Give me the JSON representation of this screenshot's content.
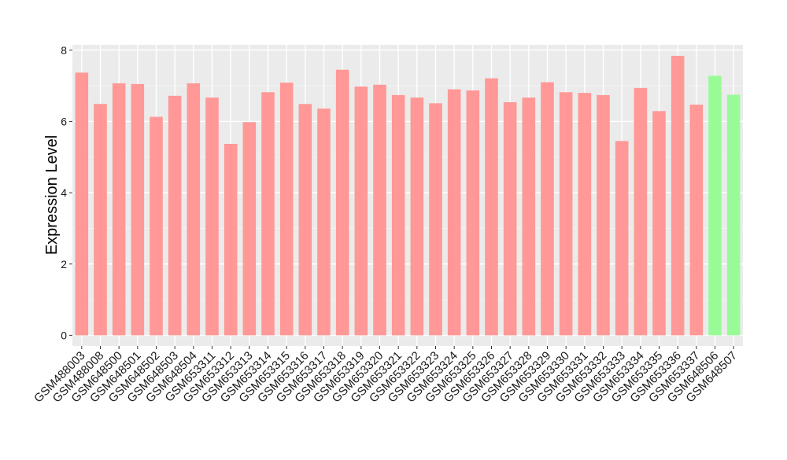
{
  "chart_data": {
    "type": "bar",
    "title": "",
    "xlabel": "",
    "ylabel": "Expression Level",
    "ylim": [
      -0.3,
      8.15
    ],
    "yticks": [
      0,
      2,
      4,
      6,
      8
    ],
    "grid": true,
    "legend": "none",
    "colors": {
      "panel_bg": "#EBEBEB",
      "grid_major": "#FFFFFF",
      "grid_minor": "#F4F4F4",
      "group_a": "#FF9896",
      "group_b": "#98FB98",
      "axis_text": "#1A1A1A",
      "tick": "#333333"
    },
    "categories": [
      "GSM488003",
      "GSM488008",
      "GSM648500",
      "GSM648501",
      "GSM648502",
      "GSM648503",
      "GSM648504",
      "GSM653311",
      "GSM653312",
      "GSM653313",
      "GSM653314",
      "GSM653315",
      "GSM653316",
      "GSM653317",
      "GSM653318",
      "GSM653319",
      "GSM653320",
      "GSM653321",
      "GSM653322",
      "GSM653323",
      "GSM653324",
      "GSM653325",
      "GSM653326",
      "GSM653327",
      "GSM653328",
      "GSM653329",
      "GSM653330",
      "GSM653331",
      "GSM653332",
      "GSM653333",
      "GSM653334",
      "GSM653335",
      "GSM653336",
      "GSM653337",
      "GSM648506",
      "GSM648507"
    ],
    "values": [
      7.37,
      6.49,
      7.07,
      7.05,
      6.13,
      6.72,
      7.07,
      6.67,
      5.37,
      5.98,
      6.82,
      7.09,
      6.49,
      6.36,
      7.45,
      6.98,
      7.03,
      6.74,
      6.67,
      6.51,
      6.9,
      6.87,
      7.21,
      6.54,
      6.67,
      7.1,
      6.82,
      6.8,
      6.74,
      5.45,
      6.94,
      6.29,
      7.84,
      6.47,
      7.28,
      6.75
    ],
    "groups": [
      "a",
      "a",
      "a",
      "a",
      "a",
      "a",
      "a",
      "a",
      "a",
      "a",
      "a",
      "a",
      "a",
      "a",
      "a",
      "a",
      "a",
      "a",
      "a",
      "a",
      "a",
      "a",
      "a",
      "a",
      "a",
      "a",
      "a",
      "a",
      "a",
      "a",
      "a",
      "a",
      "a",
      "a",
      "b",
      "b"
    ]
  }
}
